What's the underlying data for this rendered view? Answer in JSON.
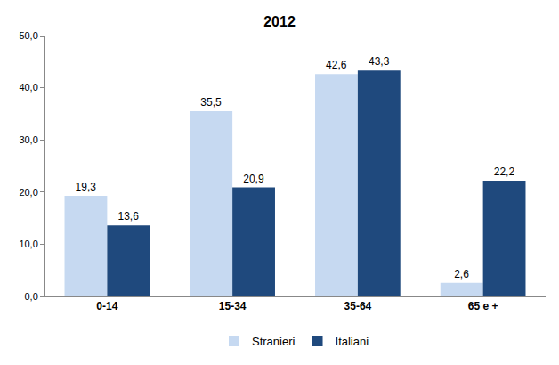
{
  "chart_data": {
    "type": "bar",
    "title": "2012",
    "categories": [
      "0-14",
      "15-34",
      "35-64",
      "65 e +"
    ],
    "series": [
      {
        "name": "Stranieri",
        "color": "#c6d9f1",
        "values": [
          19.3,
          35.5,
          42.6,
          2.6
        ],
        "value_labels": [
          "19,3",
          "35,5",
          "42,6",
          "2,6"
        ]
      },
      {
        "name": "Italiani",
        "color": "#1f497d",
        "values": [
          13.6,
          20.9,
          43.3,
          22.2
        ],
        "value_labels": [
          "13,6",
          "20,9",
          "43,3",
          "22,2"
        ]
      }
    ],
    "ylim": [
      0,
      50
    ],
    "yticks": [
      {
        "value": 0,
        "label": "0,0"
      },
      {
        "value": 10,
        "label": "10,0"
      },
      {
        "value": 20,
        "label": "20,0"
      },
      {
        "value": 30,
        "label": "30,0"
      },
      {
        "value": 40,
        "label": "40,0"
      },
      {
        "value": 50,
        "label": "50,0"
      }
    ],
    "grid": false,
    "legend": "bottom",
    "data_labels": true
  }
}
